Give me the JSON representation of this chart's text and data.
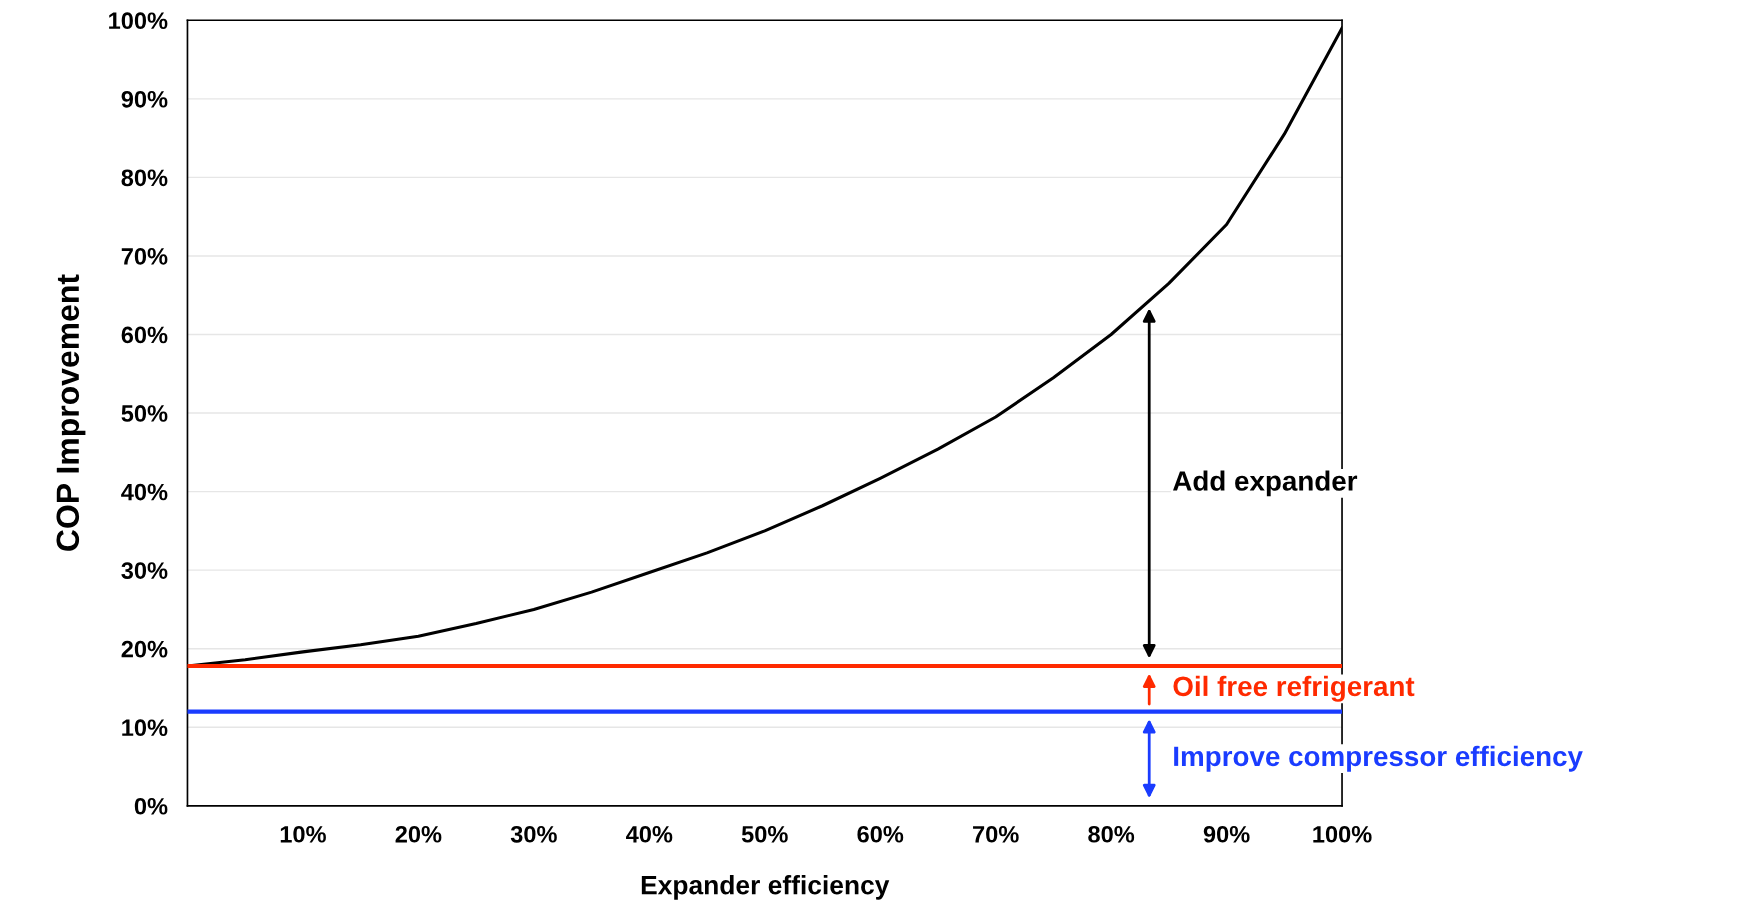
{
  "chart_data": {
    "type": "line",
    "xlabel": "Expander efficiency",
    "ylabel": "COP Improvement",
    "x": [
      0,
      5,
      10,
      15,
      20,
      25,
      30,
      35,
      40,
      45,
      50,
      55,
      60,
      65,
      70,
      75,
      80,
      85,
      90,
      95,
      100
    ],
    "series": [
      {
        "color": "#000000",
        "values": [
          17.8,
          18.6,
          19.6,
          20.5,
          21.6,
          23.2,
          25.0,
          27.2,
          29.7,
          32.2,
          35.0,
          38.2,
          41.7,
          45.4,
          49.5,
          54.5,
          60.0,
          66.5,
          74.0,
          85.5,
          99.0
        ]
      }
    ],
    "xlim": [
      0,
      100
    ],
    "ylim": [
      0,
      100
    ],
    "xticks": [
      {
        "value": 10,
        "label": "10%"
      },
      {
        "value": 20,
        "label": "20%"
      },
      {
        "value": 30,
        "label": "30%"
      },
      {
        "value": 40,
        "label": "40%"
      },
      {
        "value": 50,
        "label": "50%"
      },
      {
        "value": 60,
        "label": "60%"
      },
      {
        "value": 70,
        "label": "70%"
      },
      {
        "value": 80,
        "label": "80%"
      },
      {
        "value": 90,
        "label": "90%"
      },
      {
        "value": 100,
        "label": "100%"
      }
    ],
    "yticks": [
      {
        "value": 0,
        "label": "0%"
      },
      {
        "value": 10,
        "label": "10%"
      },
      {
        "value": 20,
        "label": "20%"
      },
      {
        "value": 30,
        "label": "30%"
      },
      {
        "value": 40,
        "label": "40%"
      },
      {
        "value": 50,
        "label": "50%"
      },
      {
        "value": 60,
        "label": "60%"
      },
      {
        "value": 70,
        "label": "70%"
      },
      {
        "value": 80,
        "label": "80%"
      },
      {
        "value": 90,
        "label": "90%"
      },
      {
        "value": 100,
        "label": "100%"
      }
    ],
    "ref_lines": [
      {
        "axis": "y",
        "value": 17.8,
        "label": "Oil free refrigerant",
        "color": "#ff2a00"
      },
      {
        "axis": "y",
        "value": 12,
        "label": "Improve compressor efficiency",
        "color": "#1a3cff"
      }
    ],
    "annotations": [
      "Add expander"
    ],
    "grid": "y",
    "legend": "bottom right",
    "marker": "none",
    "line_style": "solid"
  }
}
